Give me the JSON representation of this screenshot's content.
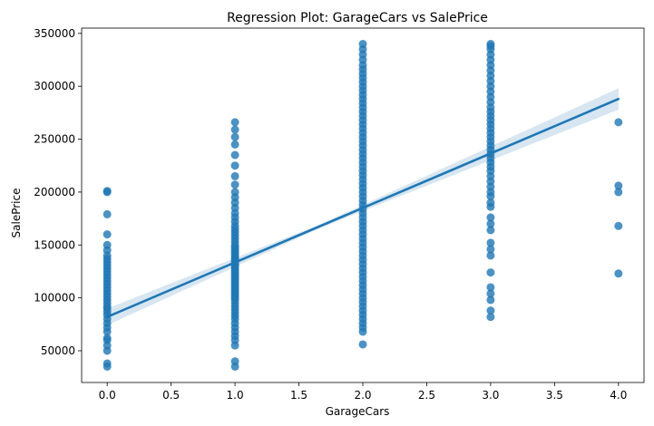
{
  "chart_data": {
    "type": "scatter",
    "title": "Regression Plot: GarageCars vs SalePrice",
    "xlabel": "GarageCars",
    "ylabel": "SalePrice",
    "xlim": [
      -0.2,
      4.2
    ],
    "ylim": [
      20000,
      355000
    ],
    "xticks": [
      "0.0",
      "0.5",
      "1.0",
      "1.5",
      "2.0",
      "2.5",
      "3.0",
      "3.5",
      "4.0"
    ],
    "xtick_values": [
      0,
      0.5,
      1,
      1.5,
      2,
      2.5,
      3,
      3.5,
      4
    ],
    "yticks": [
      "50000",
      "100000",
      "150000",
      "200000",
      "250000",
      "300000",
      "350000"
    ],
    "ytick_values": [
      50000,
      100000,
      150000,
      200000,
      250000,
      300000,
      350000
    ],
    "grid": false,
    "colors": {
      "points": "#1f77b4",
      "line": "#1f77b4",
      "band": "#1f77b4"
    },
    "series": [
      {
        "kind": "points",
        "groups": [
          {
            "x": 0,
            "y": [
              35000,
              38000,
              50000,
              55000,
              60000,
              62000,
              68000,
              72000,
              76000,
              80000,
              84000,
              87000,
              90000,
              92000,
              95000,
              98000,
              101000,
              104000,
              107000,
              110000,
              113000,
              116000,
              119000,
              122000,
              125000,
              128000,
              131000,
              134000,
              137000,
              140000,
              145000,
              150000,
              160000,
              179000,
              200000,
              201000
            ]
          },
          {
            "x": 1,
            "y": [
              35000,
              40000,
              55000,
              60000,
              64000,
              68000,
              72000,
              76000,
              80000,
              83000,
              86000,
              89000,
              92000,
              95000,
              98000,
              100000,
              102000,
              104000,
              106000,
              108000,
              110000,
              112000,
              114000,
              116000,
              118000,
              120000,
              122000,
              124000,
              126000,
              128000,
              130000,
              132000,
              134000,
              136000,
              138000,
              140000,
              142000,
              144000,
              146000,
              148000,
              150000,
              153000,
              156000,
              159000,
              162000,
              165000,
              168000,
              172000,
              176000,
              180000,
              185000,
              190000,
              195000,
              200000,
              207000,
              215000,
              225000,
              235000,
              245000,
              252000,
              259000,
              266000
            ]
          },
          {
            "x": 2,
            "y": [
              56000,
              68000,
              72000,
              76000,
              80000,
              84000,
              88000,
              92000,
              96000,
              100000,
              104000,
              108000,
              112000,
              116000,
              120000,
              124000,
              128000,
              132000,
              136000,
              140000,
              144000,
              148000,
              152000,
              156000,
              160000,
              164000,
              168000,
              172000,
              176000,
              180000,
              184000,
              188000,
              192000,
              196000,
              200000,
              204000,
              208000,
              212000,
              216000,
              220000,
              224000,
              228000,
              232000,
              236000,
              240000,
              244000,
              248000,
              252000,
              256000,
              260000,
              264000,
              268000,
              272000,
              276000,
              280000,
              284000,
              288000,
              292000,
              296000,
              300000,
              304000,
              308000,
              312000,
              316000,
              320000,
              325000,
              330000,
              335000,
              340000
            ]
          },
          {
            "x": 3,
            "y": [
              82000,
              88000,
              98000,
              104000,
              110000,
              124000,
              140000,
              146000,
              152000,
              164000,
              170000,
              176000,
              186000,
              190000,
              196000,
              200000,
              205000,
              210000,
              215000,
              220000,
              224000,
              228000,
              232000,
              236000,
              240000,
              244000,
              248000,
              252000,
              256000,
              260000,
              264000,
              268000,
              272000,
              276000,
              280000,
              285000,
              290000,
              295000,
              300000,
              305000,
              310000,
              315000,
              320000,
              325000,
              330000,
              335000,
              338000,
              340000
            ]
          },
          {
            "x": 4,
            "y": [
              123000,
              168000,
              200000,
              206000,
              266000
            ]
          }
        ]
      },
      {
        "kind": "regression",
        "x": [
          0,
          4
        ],
        "y": [
          82000,
          288000
        ],
        "ci_halfwidth": [
          5000,
          9000
        ]
      }
    ]
  }
}
